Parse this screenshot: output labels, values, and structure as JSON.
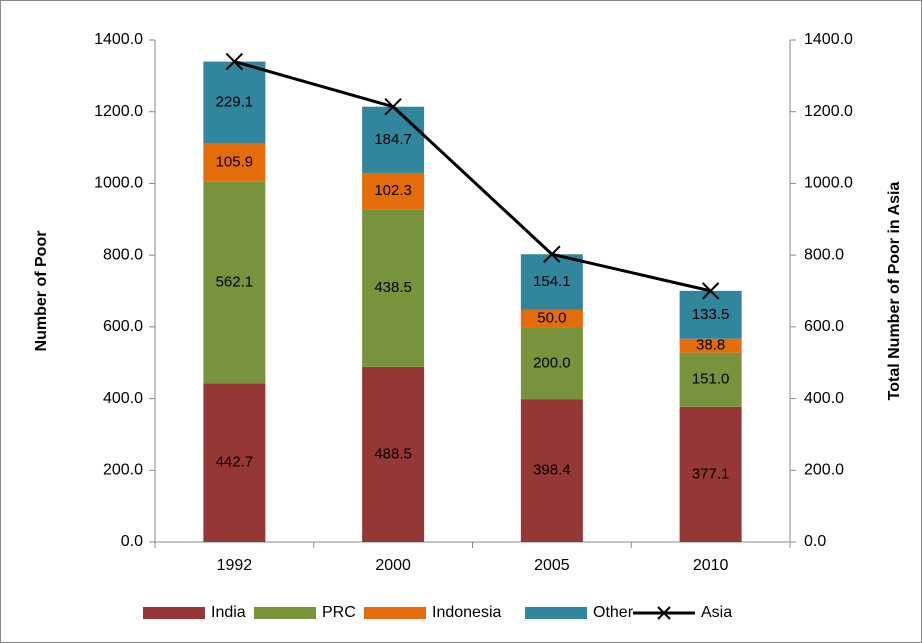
{
  "chart_data": {
    "type": "bar",
    "stacked": true,
    "y_label": "Number of Poor",
    "y2_label": "Total Number of Poor in Asia",
    "categories": [
      "1992",
      "2000",
      "2005",
      "2010"
    ],
    "series": [
      {
        "name": "India",
        "color": "#953735",
        "values": [
          442.7,
          488.5,
          398.4,
          377.1
        ],
        "value_labels": [
          "442.7",
          "488.5",
          "398.4",
          "377.1"
        ]
      },
      {
        "name": "PRC",
        "color": "#77933c",
        "values": [
          562.1,
          438.5,
          200.0,
          151.0
        ],
        "value_labels": [
          "562.1",
          "438.5",
          "200.0",
          "151.0"
        ]
      },
      {
        "name": "Indonesia",
        "color": "#e46c0a",
        "values": [
          105.9,
          102.3,
          50.0,
          38.8
        ],
        "value_labels": [
          "105.9",
          "102.3",
          "50.0",
          "38.8"
        ]
      },
      {
        "name": "Other",
        "color": "#31859c",
        "values": [
          229.1,
          184.7,
          154.1,
          133.5
        ],
        "value_labels": [
          "229.1",
          "184.7",
          "154.1",
          "133.5"
        ]
      },
      {
        "name": "Asia",
        "type": "line",
        "axis": "y2",
        "color": "#000000",
        "values": [
          1339.8,
          1214.0,
          802.5,
          700.4
        ]
      }
    ],
    "ylim": [
      0,
      1400
    ],
    "yticks": [
      {
        "value": 0,
        "label": "0.0"
      },
      {
        "value": 200,
        "label": "200.0"
      },
      {
        "value": 400,
        "label": "400.0"
      },
      {
        "value": 600,
        "label": "600.0"
      },
      {
        "value": 800,
        "label": "800.0"
      },
      {
        "value": 1000,
        "label": "1000.0"
      },
      {
        "value": 1200,
        "label": "1200.0"
      },
      {
        "value": 1400,
        "label": "1400.0"
      }
    ],
    "y2lim": [
      0,
      1400
    ],
    "y2ticks": [
      {
        "value": 0,
        "label": "0.0"
      },
      {
        "value": 200,
        "label": "200.0"
      },
      {
        "value": 400,
        "label": "400.0"
      },
      {
        "value": 600,
        "label": "600.0"
      },
      {
        "value": 800,
        "label": "800.0"
      },
      {
        "value": 1000,
        "label": "1000.0"
      },
      {
        "value": 1200,
        "label": "1200.0"
      },
      {
        "value": 1400,
        "label": "1400.0"
      }
    ],
    "grid": false,
    "legend": "bottom"
  }
}
